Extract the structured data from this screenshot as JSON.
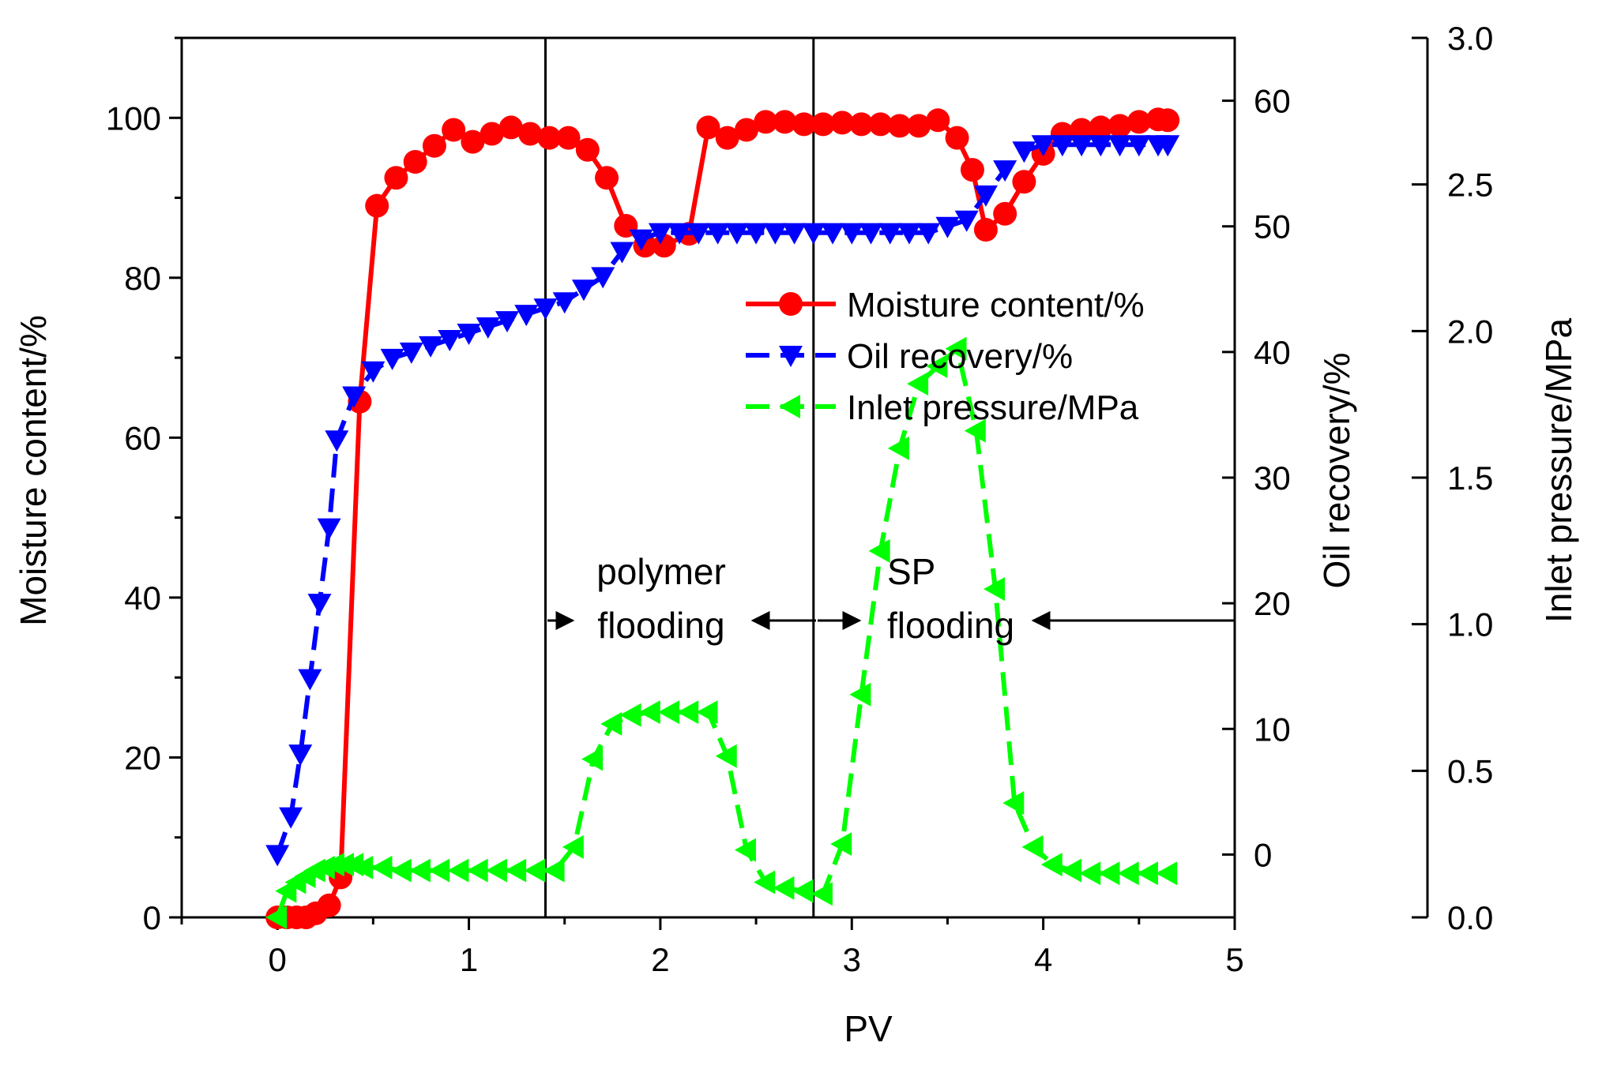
{
  "chart_data": {
    "type": "line",
    "title": "",
    "xlabel": "PV",
    "xlim": [
      -0.5,
      5
    ],
    "xticks": [
      "0",
      "1",
      "2",
      "3",
      "4",
      "5"
    ],
    "y_axes": [
      {
        "id": "moisture",
        "label": "Moisture content/%",
        "lim": [
          0,
          110
        ],
        "ticks": [
          "0",
          "20",
          "40",
          "60",
          "80",
          "100"
        ]
      },
      {
        "id": "oil",
        "label": "Oil recovery/%",
        "lim": [
          -5,
          65
        ],
        "ticks": [
          "0",
          "10",
          "20",
          "30",
          "40",
          "50",
          "60"
        ]
      },
      {
        "id": "pressure",
        "label": "Inlet pressure/MPa",
        "lim": [
          0,
          3.0
        ],
        "ticks": [
          "0.0",
          "0.5",
          "1.0",
          "1.5",
          "2.0",
          "2.5",
          "3.0"
        ]
      }
    ],
    "vlines": [
      1.4,
      2.8
    ],
    "annotations": [
      {
        "lines": [
          "polymer",
          "flooding"
        ],
        "x": 2.0
      },
      {
        "lines": [
          "SP",
          "flooding"
        ],
        "x": 3.6
      }
    ],
    "series": [
      {
        "name": "Moisture content/%",
        "axis": "moisture",
        "color": "#ff0000",
        "marker": "circle",
        "dash": "solid",
        "points": [
          [
            0,
            0
          ],
          [
            0.05,
            0
          ],
          [
            0.1,
            0
          ],
          [
            0.15,
            0
          ],
          [
            0.2,
            0.5
          ],
          [
            0.27,
            1.5
          ],
          [
            0.33,
            5
          ],
          [
            0.43,
            64.5
          ],
          [
            0.52,
            89
          ],
          [
            0.62,
            92.5
          ],
          [
            0.72,
            94.5
          ],
          [
            0.82,
            96.5
          ],
          [
            0.92,
            98.5
          ],
          [
            1.02,
            97
          ],
          [
            1.12,
            98
          ],
          [
            1.22,
            98.8
          ],
          [
            1.32,
            98
          ],
          [
            1.42,
            97.5
          ],
          [
            1.52,
            97.5
          ],
          [
            1.62,
            96
          ],
          [
            1.72,
            92.5
          ],
          [
            1.82,
            86.5
          ],
          [
            1.92,
            84
          ],
          [
            2.02,
            84
          ],
          [
            2.15,
            85.5
          ],
          [
            2.25,
            98.8
          ],
          [
            2.35,
            97.5
          ],
          [
            2.45,
            98.5
          ],
          [
            2.55,
            99.5
          ],
          [
            2.65,
            99.5
          ],
          [
            2.75,
            99.2
          ],
          [
            2.85,
            99.2
          ],
          [
            2.95,
            99.4
          ],
          [
            3.05,
            99.2
          ],
          [
            3.15,
            99.2
          ],
          [
            3.25,
            99
          ],
          [
            3.35,
            99
          ],
          [
            3.45,
            99.7
          ],
          [
            3.55,
            97.5
          ],
          [
            3.63,
            93.5
          ],
          [
            3.7,
            86
          ],
          [
            3.8,
            88
          ],
          [
            3.9,
            92
          ],
          [
            4.0,
            95.5
          ],
          [
            4.1,
            98
          ],
          [
            4.2,
            98.5
          ],
          [
            4.3,
            98.8
          ],
          [
            4.4,
            99
          ],
          [
            4.5,
            99.5
          ],
          [
            4.6,
            99.8
          ],
          [
            4.65,
            99.7
          ]
        ]
      },
      {
        "name": "Oil recovery/%",
        "axis": "oil",
        "color": "#0000ff",
        "marker": "triangle-down",
        "dash": "dash",
        "points": [
          [
            0,
            0
          ],
          [
            0.07,
            3
          ],
          [
            0.12,
            8
          ],
          [
            0.17,
            14
          ],
          [
            0.22,
            20
          ],
          [
            0.27,
            26
          ],
          [
            0.31,
            33
          ],
          [
            0.4,
            36.5
          ],
          [
            0.5,
            38.5
          ],
          [
            0.6,
            39.5
          ],
          [
            0.7,
            40
          ],
          [
            0.8,
            40.5
          ],
          [
            0.9,
            41
          ],
          [
            1.0,
            41.5
          ],
          [
            1.1,
            42
          ],
          [
            1.2,
            42.5
          ],
          [
            1.3,
            43
          ],
          [
            1.4,
            43.5
          ],
          [
            1.5,
            44
          ],
          [
            1.6,
            45
          ],
          [
            1.7,
            46
          ],
          [
            1.8,
            48
          ],
          [
            1.9,
            49
          ],
          [
            2.0,
            49.5
          ],
          [
            2.1,
            49.5
          ],
          [
            2.2,
            49.5
          ],
          [
            2.3,
            49.5
          ],
          [
            2.4,
            49.5
          ],
          [
            2.5,
            49.5
          ],
          [
            2.6,
            49.5
          ],
          [
            2.7,
            49.5
          ],
          [
            2.8,
            49.5
          ],
          [
            2.9,
            49.5
          ],
          [
            3.0,
            49.5
          ],
          [
            3.1,
            49.5
          ],
          [
            3.2,
            49.5
          ],
          [
            3.3,
            49.5
          ],
          [
            3.4,
            49.5
          ],
          [
            3.5,
            50
          ],
          [
            3.6,
            50.5
          ],
          [
            3.7,
            52.5
          ],
          [
            3.8,
            54.5
          ],
          [
            3.9,
            56
          ],
          [
            4.0,
            56.5
          ],
          [
            4.1,
            56.5
          ],
          [
            4.2,
            56.5
          ],
          [
            4.3,
            56.5
          ],
          [
            4.4,
            56.5
          ],
          [
            4.5,
            56.5
          ],
          [
            4.6,
            56.5
          ],
          [
            4.65,
            56.5
          ]
        ]
      },
      {
        "name": "Inlet pressure/MPa",
        "axis": "pressure",
        "color": "#00ff00",
        "marker": "triangle-left",
        "dash": "dash",
        "points": [
          [
            0,
            0
          ],
          [
            0.05,
            0.09
          ],
          [
            0.1,
            0.12
          ],
          [
            0.15,
            0.14
          ],
          [
            0.2,
            0.16
          ],
          [
            0.25,
            0.17
          ],
          [
            0.3,
            0.18
          ],
          [
            0.35,
            0.18
          ],
          [
            0.4,
            0.18
          ],
          [
            0.45,
            0.17
          ],
          [
            0.55,
            0.17
          ],
          [
            0.65,
            0.16
          ],
          [
            0.75,
            0.16
          ],
          [
            0.85,
            0.16
          ],
          [
            0.95,
            0.16
          ],
          [
            1.05,
            0.16
          ],
          [
            1.15,
            0.16
          ],
          [
            1.25,
            0.16
          ],
          [
            1.35,
            0.16
          ],
          [
            1.45,
            0.16
          ],
          [
            1.55,
            0.24
          ],
          [
            1.65,
            0.54
          ],
          [
            1.75,
            0.66
          ],
          [
            1.85,
            0.69
          ],
          [
            1.95,
            0.7
          ],
          [
            2.05,
            0.7
          ],
          [
            2.15,
            0.7
          ],
          [
            2.25,
            0.7
          ],
          [
            2.35,
            0.55
          ],
          [
            2.45,
            0.23
          ],
          [
            2.55,
            0.12
          ],
          [
            2.65,
            0.1
          ],
          [
            2.75,
            0.09
          ],
          [
            2.85,
            0.08
          ],
          [
            2.95,
            0.25
          ],
          [
            3.05,
            0.76
          ],
          [
            3.15,
            1.25
          ],
          [
            3.25,
            1.6
          ],
          [
            3.35,
            1.82
          ],
          [
            3.45,
            1.88
          ],
          [
            3.55,
            1.94
          ],
          [
            3.65,
            1.66
          ],
          [
            3.75,
            1.12
          ],
          [
            3.85,
            0.39
          ],
          [
            3.95,
            0.24
          ],
          [
            4.05,
            0.18
          ],
          [
            4.15,
            0.16
          ],
          [
            4.25,
            0.15
          ],
          [
            4.35,
            0.15
          ],
          [
            4.45,
            0.15
          ],
          [
            4.55,
            0.15
          ],
          [
            4.65,
            0.15
          ]
        ]
      }
    ]
  }
}
